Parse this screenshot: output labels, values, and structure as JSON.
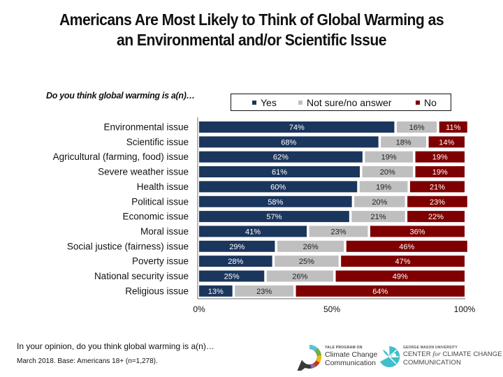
{
  "title_lines": [
    "Americans Are Most Likely to Think of Global Warming as",
    "an Environmental and/or Scientific Issue"
  ],
  "question": "Do you think global warming is a(n)…",
  "legend": [
    {
      "label": "Yes",
      "color": "#1b365d"
    },
    {
      "label": "Not sure/no answer",
      "color": "#bfbfbf"
    },
    {
      "label": "No",
      "color": "#7f0000"
    }
  ],
  "chart_data": {
    "type": "bar",
    "orientation": "horizontal",
    "stacked": true,
    "title": "Americans Are Most Likely to Think of Global Warming as an Environmental and/or Scientific Issue",
    "subtitle": "Do you think global warming is a(n)…",
    "xlabel": "",
    "ylabel": "",
    "xlim": [
      0,
      100
    ],
    "x_ticks": [
      "0%",
      "50%",
      "100%"
    ],
    "legend_position": "top-right",
    "grid": false,
    "categories": [
      "Environmental issue",
      "Scientific issue",
      "Agricultural (farming, food) issue",
      "Severe weather issue",
      "Health issue",
      "Political issue",
      "Economic issue",
      "Moral issue",
      "Social justice (fairness) issue",
      "Poverty issue",
      "National security issue",
      "Religious issue"
    ],
    "series": [
      {
        "name": "Yes",
        "color": "#1b365d",
        "label_color": "#ffffff",
        "values": [
          74,
          68,
          62,
          61,
          60,
          58,
          57,
          41,
          29,
          28,
          25,
          13
        ]
      },
      {
        "name": "Not sure/no answer",
        "color": "#bfbfbf",
        "label_color": "#222222",
        "values": [
          16,
          18,
          19,
          20,
          19,
          20,
          21,
          23,
          26,
          25,
          26,
          23
        ]
      },
      {
        "name": "No",
        "color": "#7f0000",
        "label_color": "#ffffff",
        "values": [
          11,
          14,
          19,
          19,
          21,
          23,
          22,
          36,
          46,
          47,
          49,
          64
        ]
      }
    ]
  },
  "footnotes": [
    "In your opinion, do you think global warming is a(n)…",
    "March 2018. Base: Americans 18+ (n=1,278)."
  ],
  "logos": {
    "yale": {
      "small": "YALE PROGRAM ON",
      "line1": "Climate Change",
      "line2": "Communication"
    },
    "gmu": {
      "small": "GEORGE MASON UNIVERSITY",
      "line1_a": "CENTER ",
      "line1_for": "for",
      "line1_b": " CLIMATE CHANGE",
      "line2": "COMMUNICATION"
    }
  }
}
